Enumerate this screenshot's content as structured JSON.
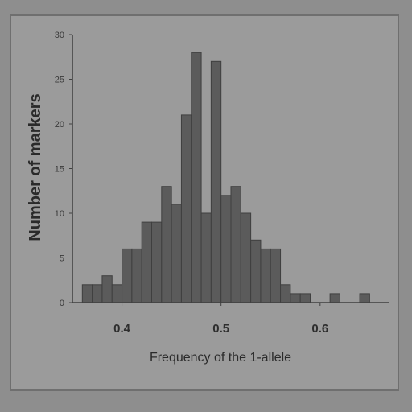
{
  "colors": {
    "background": "#9b9b9b",
    "bar_fill": "#5b5b5b",
    "bar_edge": "#3f3f3f",
    "axis": "#404040"
  },
  "chart_data": {
    "type": "bar",
    "title": "",
    "xlabel": "Frequency of the 1-allele",
    "ylabel": "Number of markers",
    "xlim": [
      0.35,
      0.67
    ],
    "ylim": [
      0,
      30
    ],
    "x_ticks": [
      "0.4",
      "0.5",
      "0.6"
    ],
    "x_tick_values": [
      0.4,
      0.5,
      0.6
    ],
    "y_ticks": [
      "0",
      "5",
      "10",
      "15",
      "20",
      "25",
      "30"
    ],
    "y_tick_values": [
      0,
      5,
      10,
      15,
      20,
      25,
      30
    ],
    "grid": false,
    "bins": [
      {
        "x0": 0.36,
        "x1": 0.37,
        "value": 2
      },
      {
        "x0": 0.37,
        "x1": 0.38,
        "value": 2
      },
      {
        "x0": 0.38,
        "x1": 0.39,
        "value": 3
      },
      {
        "x0": 0.39,
        "x1": 0.4,
        "value": 2
      },
      {
        "x0": 0.4,
        "x1": 0.41,
        "value": 6
      },
      {
        "x0": 0.41,
        "x1": 0.42,
        "value": 6
      },
      {
        "x0": 0.42,
        "x1": 0.43,
        "value": 9
      },
      {
        "x0": 0.43,
        "x1": 0.44,
        "value": 9
      },
      {
        "x0": 0.44,
        "x1": 0.45,
        "value": 13
      },
      {
        "x0": 0.45,
        "x1": 0.46,
        "value": 11
      },
      {
        "x0": 0.46,
        "x1": 0.47,
        "value": 21
      },
      {
        "x0": 0.47,
        "x1": 0.48,
        "value": 28
      },
      {
        "x0": 0.48,
        "x1": 0.49,
        "value": 10
      },
      {
        "x0": 0.49,
        "x1": 0.5,
        "value": 27
      },
      {
        "x0": 0.5,
        "x1": 0.51,
        "value": 12
      },
      {
        "x0": 0.51,
        "x1": 0.52,
        "value": 13
      },
      {
        "x0": 0.52,
        "x1": 0.53,
        "value": 10
      },
      {
        "x0": 0.53,
        "x1": 0.54,
        "value": 7
      },
      {
        "x0": 0.54,
        "x1": 0.55,
        "value": 6
      },
      {
        "x0": 0.55,
        "x1": 0.56,
        "value": 6
      },
      {
        "x0": 0.56,
        "x1": 0.57,
        "value": 2
      },
      {
        "x0": 0.57,
        "x1": 0.58,
        "value": 1
      },
      {
        "x0": 0.58,
        "x1": 0.59,
        "value": 1
      },
      {
        "x0": 0.59,
        "x1": 0.6,
        "value": 0
      },
      {
        "x0": 0.6,
        "x1": 0.61,
        "value": 0
      },
      {
        "x0": 0.61,
        "x1": 0.62,
        "value": 1
      },
      {
        "x0": 0.62,
        "x1": 0.63,
        "value": 0
      },
      {
        "x0": 0.63,
        "x1": 0.64,
        "value": 0
      },
      {
        "x0": 0.64,
        "x1": 0.65,
        "value": 1
      }
    ]
  }
}
